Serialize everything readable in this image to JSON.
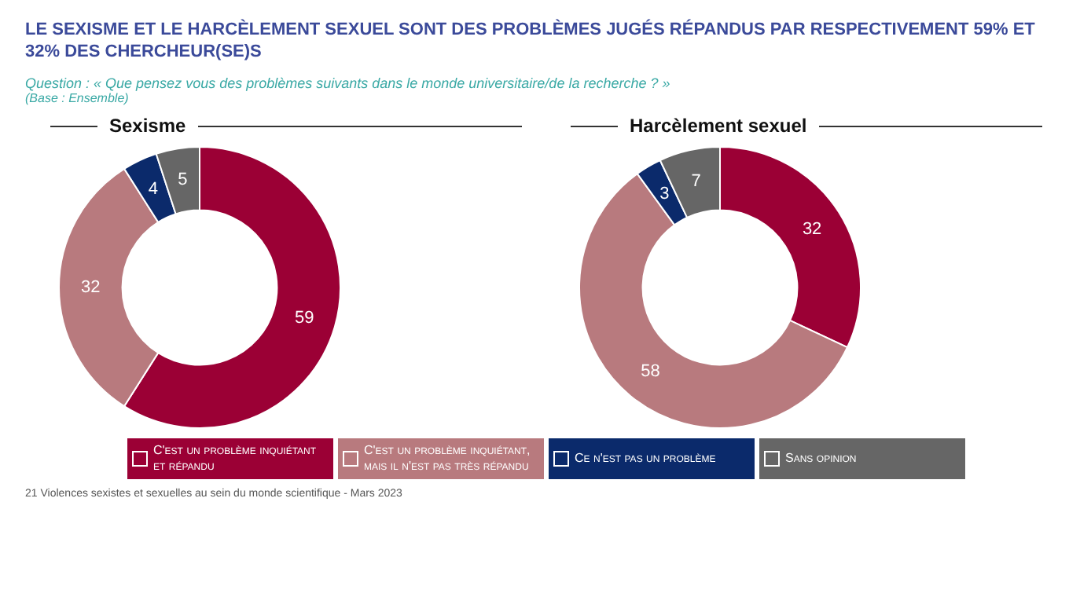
{
  "chart_data": [
    {
      "type": "other",
      "title": "LE SEXISME ET LE HARCÈLEMENT SEXUEL SONT DES PROBLÈMES JUGÉS RÉPANDUS PAR RESPECTIVEMENT 59% ET 32% DES CHERCHEUR(SE)S",
      "subtitle": "Question : « Que pensez vous des problèmes suivants dans le monde universitaire/de la recherche ? »",
      "annotations": [
        "(Base : Ensemble)",
        "21 Violences sexistes et sexuelles au sein du monde scientifique - Mars 2023"
      ]
    },
    {
      "type": "donut",
      "title": "Sexisme",
      "categories": [
        "C'est un problème inquiétant et répandu",
        "C'est un problème inquiétant, mais il n'est pas très répandu",
        "Ce n'est pas un problème",
        "Sans opinion"
      ],
      "values": [
        59,
        32,
        4,
        5
      ],
      "colors": [
        "#9b0035",
        "#b87a7e",
        "#0b2a6b",
        "#666666"
      ],
      "data_labels": true,
      "legend": "bottom"
    },
    {
      "type": "donut",
      "title": "Harcèlement sexuel",
      "categories": [
        null,
        null,
        null,
        null
      ],
      "values": [
        32,
        58,
        3,
        7
      ],
      "colors": [
        "#9b0035",
        "#b87a7e",
        "#0b2a6b",
        "#666666"
      ],
      "data_labels": true
    }
  ]
}
